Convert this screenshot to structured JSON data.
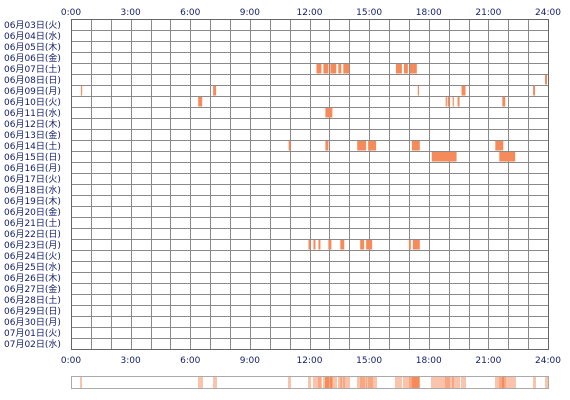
{
  "chart_data": {
    "type": "heatmap",
    "x_unit": "hour",
    "xlim": [
      0,
      24
    ],
    "x_ticks": [
      "0:00",
      "3:00",
      "6:00",
      "9:00",
      "12:00",
      "15:00",
      "18:00",
      "21:00",
      "24:00"
    ],
    "rows": [
      "06月03日(火)",
      "06月04日(水)",
      "06月05日(木)",
      "06月06日(金)",
      "06月07日(土)",
      "06月08日(日)",
      "06月09日(月)",
      "06月10日(火)",
      "06月11日(水)",
      "06月12日(木)",
      "06月13日(金)",
      "06月14日(土)",
      "06月15日(日)",
      "06月16日(月)",
      "06月17日(火)",
      "06月18日(水)",
      "06月19日(木)",
      "06月20日(金)",
      "06月21日(土)",
      "06月22日(日)",
      "06月23日(月)",
      "06月24日(火)",
      "06月25日(水)",
      "06月26日(木)",
      "06月27日(金)",
      "06月28日(土)",
      "06月29日(日)",
      "06月30日(月)",
      "07月01日(火)",
      "07月02日(水)"
    ],
    "events": [
      {
        "row": 4,
        "start": 12.35,
        "end": 12.6
      },
      {
        "row": 4,
        "start": 12.7,
        "end": 12.95
      },
      {
        "row": 4,
        "start": 13.05,
        "end": 13.35
      },
      {
        "row": 4,
        "start": 13.45,
        "end": 13.6
      },
      {
        "row": 4,
        "start": 13.7,
        "end": 14.0
      },
      {
        "row": 4,
        "start": 16.35,
        "end": 16.65
      },
      {
        "row": 4,
        "start": 16.75,
        "end": 16.95
      },
      {
        "row": 4,
        "start": 17.05,
        "end": 17.4
      },
      {
        "row": 5,
        "start": 23.85,
        "end": 23.95
      },
      {
        "row": 6,
        "start": 0.5,
        "end": 0.55
      },
      {
        "row": 6,
        "start": 7.15,
        "end": 7.3
      },
      {
        "row": 6,
        "start": 17.45,
        "end": 17.5
      },
      {
        "row": 6,
        "start": 19.65,
        "end": 19.85
      },
      {
        "row": 6,
        "start": 23.25,
        "end": 23.35
      },
      {
        "row": 7,
        "start": 6.4,
        "end": 6.6
      },
      {
        "row": 7,
        "start": 18.85,
        "end": 18.9
      },
      {
        "row": 7,
        "start": 18.95,
        "end": 19.05
      },
      {
        "row": 7,
        "start": 19.2,
        "end": 19.25
      },
      {
        "row": 7,
        "start": 19.45,
        "end": 19.55
      },
      {
        "row": 7,
        "start": 21.7,
        "end": 21.85
      },
      {
        "row": 8,
        "start": 12.8,
        "end": 13.15
      },
      {
        "row": 11,
        "start": 10.95,
        "end": 11.05
      },
      {
        "row": 11,
        "start": 12.8,
        "end": 12.95
      },
      {
        "row": 11,
        "start": 14.4,
        "end": 14.85
      },
      {
        "row": 11,
        "start": 14.95,
        "end": 15.35
      },
      {
        "row": 11,
        "start": 17.15,
        "end": 17.55
      },
      {
        "row": 11,
        "start": 21.35,
        "end": 21.75
      },
      {
        "row": 12,
        "start": 18.15,
        "end": 19.4
      },
      {
        "row": 12,
        "start": 21.55,
        "end": 22.35
      },
      {
        "row": 20,
        "start": 11.95,
        "end": 12.05
      },
      {
        "row": 20,
        "start": 12.2,
        "end": 12.3
      },
      {
        "row": 20,
        "start": 12.45,
        "end": 12.55
      },
      {
        "row": 20,
        "start": 12.95,
        "end": 13.1
      },
      {
        "row": 20,
        "start": 13.55,
        "end": 13.75
      },
      {
        "row": 20,
        "start": 14.55,
        "end": 14.75
      },
      {
        "row": 20,
        "start": 14.85,
        "end": 15.15
      },
      {
        "row": 20,
        "start": 17.0,
        "end": 17.1
      },
      {
        "row": 20,
        "start": 17.2,
        "end": 17.55
      }
    ],
    "colors": {
      "bar": "#f58a5a",
      "grid": "#8a8a8a",
      "text": "#111c6a",
      "summary_border": "#aaaaaa"
    },
    "grid": true
  }
}
